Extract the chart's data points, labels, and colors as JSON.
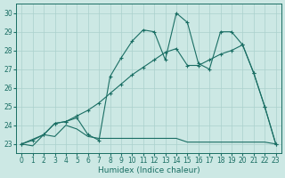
{
  "bg_color": "#cce8e4",
  "grid_color": "#aad0cc",
  "line_color": "#1a6e64",
  "xlabel": "Humidex (Indice chaleur)",
  "xlim": [
    -0.5,
    23.5
  ],
  "ylim": [
    22.5,
    30.5
  ],
  "yticks": [
    23,
    24,
    25,
    26,
    27,
    28,
    29,
    30
  ],
  "xticks": [
    0,
    1,
    2,
    3,
    4,
    5,
    6,
    7,
    8,
    9,
    10,
    11,
    12,
    13,
    14,
    15,
    16,
    17,
    18,
    19,
    20,
    21,
    22,
    23
  ],
  "line_flat_x": [
    0,
    1,
    2,
    3,
    4,
    5,
    6,
    7,
    8,
    9,
    10,
    11,
    12,
    13,
    14,
    15,
    16,
    17,
    18,
    19,
    20,
    21,
    22,
    23
  ],
  "line_flat_y": [
    23.0,
    22.9,
    23.5,
    23.4,
    24.0,
    23.8,
    23.4,
    23.3,
    23.3,
    23.3,
    23.3,
    23.3,
    23.3,
    23.3,
    23.3,
    23.1,
    23.1,
    23.1,
    23.1,
    23.1,
    23.1,
    23.1,
    23.1,
    23.0
  ],
  "line_diag_x": [
    0,
    1,
    2,
    3,
    4,
    5,
    6,
    7,
    8,
    9,
    10,
    11,
    12,
    13,
    14,
    15,
    16,
    17,
    18,
    19,
    20,
    21,
    22,
    23
  ],
  "line_diag_y": [
    23.0,
    23.2,
    23.5,
    24.1,
    24.2,
    24.5,
    24.8,
    25.2,
    25.7,
    26.2,
    26.7,
    27.1,
    27.5,
    27.9,
    28.1,
    27.2,
    27.2,
    27.5,
    27.8,
    28.0,
    28.3,
    26.8,
    25.0,
    23.0
  ],
  "line_zigzag_x": [
    0,
    2,
    3,
    4,
    5,
    6,
    7,
    8,
    9,
    10,
    11,
    12,
    13,
    14,
    15,
    16,
    17,
    18,
    19,
    20,
    21,
    22,
    23
  ],
  "line_zigzag_y": [
    23.0,
    23.5,
    24.1,
    24.2,
    24.4,
    23.5,
    23.2,
    26.6,
    27.6,
    28.5,
    29.1,
    29.0,
    27.5,
    30.0,
    29.5,
    27.3,
    27.0,
    29.0,
    29.0,
    28.3,
    26.8,
    25.0,
    23.0
  ]
}
